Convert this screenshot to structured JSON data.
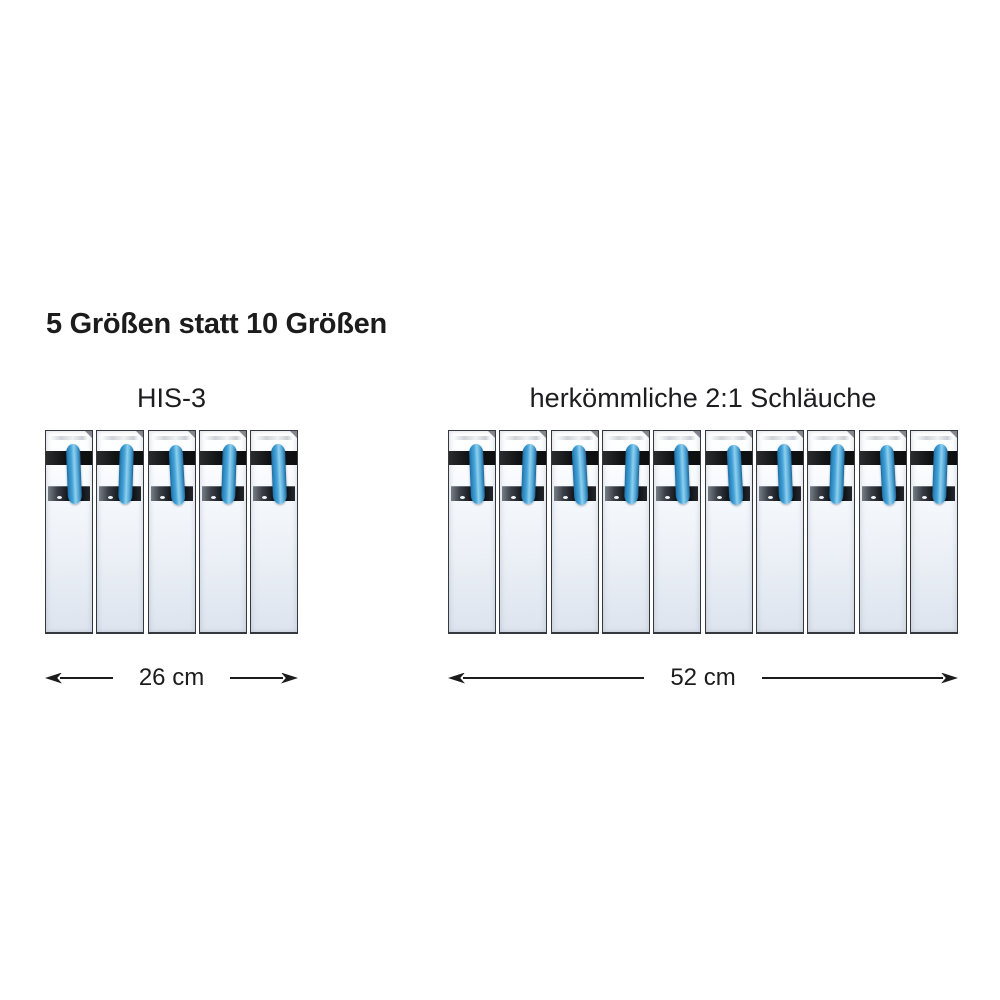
{
  "heading": "5 Größen statt 10 Größen",
  "groups": [
    {
      "id": "his-3",
      "title": "HIS-3",
      "package_count": 5,
      "dimension_label": "26 cm"
    },
    {
      "id": "conventional",
      "title": "herkömmliche 2:1 Schläuche",
      "package_count": 10,
      "dimension_label": "52 cm"
    }
  ],
  "icons": {
    "arrow_left": "arrow-left-icon",
    "arrow_right": "arrow-right-icon"
  },
  "colors": {
    "text": "#1c1c1c",
    "band_black": "#121314",
    "tube_blue": "#45a3d9",
    "tube_highlight": "#8fd0ee",
    "tube_shadow": "#1e6fa4",
    "package_bg_top": "#ffffff",
    "package_bg_bottom": "#dde4ee",
    "package_border": "#35383d"
  }
}
